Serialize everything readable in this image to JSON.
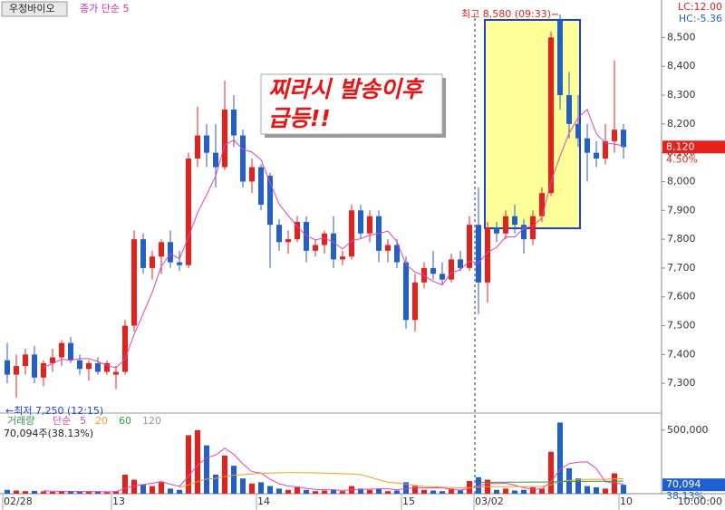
{
  "header": {
    "tab": "우정바이오",
    "indicator": "종가 단순 5",
    "lc": "LC:12.00",
    "hc": "HC:-5.36",
    "time": "10:00:00"
  },
  "chart_data": [
    {
      "type": "candlestick",
      "up_color": "#e8201c",
      "down_color": "#1f5fce",
      "ylim": [
        7200,
        8630
      ],
      "yticks": [
        {
          "value": 7300,
          "label": "7,300"
        },
        {
          "value": 7400,
          "label": "7,400"
        },
        {
          "value": 7500,
          "label": "7,500"
        },
        {
          "value": 7600,
          "label": "7,600"
        },
        {
          "value": 7700,
          "label": "7,700"
        },
        {
          "value": 7800,
          "label": "7,800"
        },
        {
          "value": 7900,
          "label": "7,900"
        },
        {
          "value": 8000,
          "label": "8,000"
        },
        {
          "value": 8100,
          "label": "8,100"
        },
        {
          "value": 8200,
          "label": "8,200"
        },
        {
          "value": 8300,
          "label": "8,300"
        },
        {
          "value": 8400,
          "label": "8,400"
        },
        {
          "value": 8500,
          "label": "8,500"
        }
      ],
      "candles": [
        [
          7380,
          7440,
          7300,
          7330
        ],
        [
          7330,
          7400,
          7250,
          7360
        ],
        [
          7360,
          7420,
          7330,
          7400
        ],
        [
          7400,
          7430,
          7300,
          7320
        ],
        [
          7320,
          7380,
          7290,
          7370
        ],
        [
          7370,
          7420,
          7340,
          7390
        ],
        [
          7390,
          7450,
          7360,
          7440
        ],
        [
          7440,
          7460,
          7370,
          7380
        ],
        [
          7380,
          7400,
          7330,
          7350
        ],
        [
          7350,
          7380,
          7310,
          7370
        ],
        [
          7370,
          7390,
          7330,
          7340
        ],
        [
          7340,
          7380,
          7330,
          7370
        ],
        [
          7330,
          7360,
          7280,
          7340
        ],
        [
          7340,
          7520,
          7330,
          7500
        ],
        [
          7500,
          7830,
          7480,
          7800
        ],
        [
          7800,
          7820,
          7680,
          7700
        ],
        [
          7700,
          7760,
          7660,
          7740
        ],
        [
          7740,
          7800,
          7680,
          7790
        ],
        [
          7790,
          7830,
          7700,
          7720
        ],
        [
          7720,
          7760,
          7690,
          7710
        ],
        [
          7710,
          8100,
          7700,
          8080
        ],
        [
          8080,
          8260,
          8050,
          8160
        ],
        [
          8160,
          8200,
          8050,
          8100
        ],
        [
          8100,
          8200,
          7980,
          8050
        ],
        [
          8050,
          8350,
          8040,
          8250
        ],
        [
          8250,
          8300,
          8120,
          8160
        ],
        [
          8160,
          8180,
          7980,
          8000
        ],
        [
          8000,
          8080,
          7960,
          8050
        ],
        [
          8050,
          8060,
          7900,
          7920
        ],
        [
          8020,
          8030,
          7700,
          7850
        ],
        [
          7850,
          7870,
          7760,
          7790
        ],
        [
          7790,
          7830,
          7750,
          7800
        ],
        [
          7800,
          7880,
          7790,
          7860
        ],
        [
          7860,
          7880,
          7720,
          7760
        ],
        [
          7760,
          7800,
          7740,
          7780
        ],
        [
          7780,
          7830,
          7750,
          7820
        ],
        [
          7820,
          7880,
          7700,
          7730
        ],
        [
          7730,
          7760,
          7710,
          7740
        ],
        [
          7740,
          7920,
          7730,
          7900
        ],
        [
          7900,
          7920,
          7800,
          7820
        ],
        [
          7820,
          7900,
          7790,
          7880
        ],
        [
          7880,
          7900,
          7720,
          7760
        ],
        [
          7760,
          7800,
          7720,
          7780
        ],
        [
          7780,
          7800,
          7700,
          7720
        ],
        [
          7720,
          7740,
          7490,
          7520
        ],
        [
          7520,
          7680,
          7480,
          7650
        ],
        [
          7650,
          7720,
          7630,
          7700
        ],
        [
          7700,
          7760,
          7660,
          7680
        ],
        [
          7680,
          7720,
          7640,
          7660
        ],
        [
          7660,
          7750,
          7650,
          7730
        ],
        [
          7730,
          7760,
          7690,
          7700
        ],
        [
          7700,
          7880,
          7690,
          7850
        ],
        [
          7850,
          7980,
          7540,
          7650
        ],
        [
          7650,
          7860,
          7580,
          7840
        ],
        [
          7840,
          7860,
          7790,
          7820
        ],
        [
          7820,
          7900,
          7800,
          7880
        ],
        [
          7880,
          7920,
          7820,
          7850
        ],
        [
          7850,
          7870,
          7750,
          7800
        ],
        [
          7800,
          7900,
          7780,
          7880
        ],
        [
          7880,
          7980,
          7860,
          7960
        ],
        [
          7960,
          8520,
          7950,
          8500
        ],
        [
          8560,
          8580,
          8250,
          8300
        ],
        [
          8300,
          8380,
          8150,
          8200
        ],
        [
          8200,
          8300,
          8120,
          8150
        ],
        [
          8150,
          8200,
          8000,
          8100
        ],
        [
          8100,
          8140,
          8050,
          8080
        ],
        [
          8080,
          8200,
          8060,
          8140
        ],
        [
          8140,
          8420,
          8100,
          8180
        ],
        [
          8180,
          8200,
          8080,
          8120
        ]
      ],
      "ma": {
        "name": "종가 단순 5",
        "color": "#e040c0",
        "values": [
          null,
          null,
          null,
          null,
          7356,
          7368,
          7384,
          7380,
          7386,
          7386,
          7376,
          7362,
          7354,
          7384,
          7470,
          7542,
          7616,
          7706,
          7750,
          7732,
          7808,
          7892,
          7954,
          8020,
          8128,
          8144,
          8112,
          8102,
          8076,
          7996,
          7922,
          7882,
          7844,
          7812,
          7798,
          7804,
          7790,
          7766,
          7794,
          7802,
          7814,
          7820,
          7828,
          7792,
          7712,
          7686,
          7674,
          7654,
          7642,
          7684,
          7694,
          7724,
          7718,
          7754,
          7772,
          7808,
          7808,
          7838,
          7846,
          7874,
          7998,
          8088,
          8168,
          8222,
          8250,
          8166,
          8134,
          8130,
          8124
        ]
      },
      "high_label": "최고 8,580 (09:33)",
      "high_index": 61,
      "high": 8580,
      "low_label": "←최저 7,250 (12:15)",
      "low": 7250,
      "last_price": {
        "value": 8120,
        "label": "8,120"
      },
      "change_label": "4.50%",
      "annotation": [
        "찌라시 발송이후",
        "급등!!"
      ]
    },
    {
      "type": "bar",
      "ylim": [
        0,
        620000
      ],
      "yticks": [
        {
          "value": 500000,
          "label": "500,000"
        }
      ],
      "title": "거래량",
      "ma_label": "단순",
      "info": "70,094주(38.13%)",
      "last_volume": {
        "value": 70094,
        "label": "70,094"
      },
      "ratio_label": "38.13%",
      "categories": [
        "02/28",
        null,
        null,
        null,
        null,
        null,
        null,
        null,
        null,
        null,
        null,
        null,
        "13",
        null,
        null,
        null,
        null,
        null,
        null,
        null,
        null,
        null,
        null,
        null,
        null,
        null,
        null,
        null,
        "14",
        null,
        null,
        null,
        null,
        null,
        null,
        null,
        null,
        null,
        null,
        null,
        null,
        null,
        null,
        null,
        "15",
        null,
        null,
        null,
        null,
        null,
        null,
        null,
        "03/02",
        null,
        null,
        null,
        null,
        null,
        null,
        null,
        null,
        null,
        null,
        null,
        null,
        null,
        null,
        null,
        "10"
      ],
      "values": [
        30000,
        25000,
        20000,
        22000,
        18000,
        15000,
        20000,
        18000,
        15000,
        16000,
        14000,
        12000,
        20000,
        150000,
        110000,
        70000,
        60000,
        90000,
        40000,
        30000,
        460000,
        500000,
        380000,
        150000,
        300000,
        220000,
        120000,
        80000,
        90000,
        60000,
        40000,
        30000,
        50000,
        30000,
        20000,
        25000,
        30000,
        20000,
        60000,
        40000,
        30000,
        40000,
        20000,
        25000,
        90000,
        60000,
        30000,
        25000,
        20000,
        40000,
        25000,
        100000,
        130000,
        110000,
        30000,
        40000,
        25000,
        30000,
        50000,
        40000,
        330000,
        560000,
        200000,
        120000,
        60000,
        50000,
        40000,
        160000,
        70094
      ],
      "series": [
        {
          "name": "5",
          "color": "#e040c0",
          "values": [
            null,
            null,
            null,
            null,
            23000,
            20000,
            19000,
            18600,
            17200,
            16800,
            16600,
            15000,
            15400,
            42400,
            61200,
            72400,
            82000,
            96000,
            74000,
            58000,
            136000,
            224000,
            282000,
            304000,
            358000,
            310000,
            234000,
            174000,
            162000,
            114000,
            78000,
            60000,
            54000,
            42000,
            34000,
            31000,
            31000,
            25000,
            31000,
            35000,
            36000,
            38000,
            38000,
            31000,
            41000,
            47000,
            45000,
            46000,
            45000,
            35000,
            28000,
            42000,
            63000,
            81000,
            79000,
            82000,
            67000,
            47000,
            35000,
            37000,
            95000,
            191000,
            236000,
            248000,
            250000,
            198000,
            94000,
            86000,
            76000
          ]
        },
        {
          "name": "20",
          "color": "#f0a020",
          "values": [
            null,
            null,
            null,
            null,
            null,
            null,
            null,
            null,
            null,
            null,
            null,
            null,
            null,
            null,
            null,
            null,
            null,
            null,
            null,
            50000,
            70000,
            95000,
            115000,
            120000,
            135000,
            145000,
            150000,
            155000,
            160000,
            162000,
            165000,
            166000,
            166000,
            165000,
            164000,
            162000,
            160000,
            158000,
            155000,
            150000,
            130000,
            110000,
            90000,
            85000,
            75000,
            65000,
            58000,
            55000,
            52000,
            48000,
            45000,
            47000,
            52000,
            55000,
            55000,
            56000,
            56000,
            56000,
            57000,
            58000,
            70000,
            95000,
            105000,
            110000,
            112000,
            113000,
            113000,
            118000,
            117000
          ]
        },
        {
          "name": "60",
          "color": "#2a9a40",
          "values": [
            null,
            null,
            null,
            null,
            null,
            null,
            null,
            null,
            null,
            null,
            null,
            null,
            null,
            null,
            null,
            null,
            null,
            null,
            null,
            null,
            null,
            null,
            null,
            null,
            null,
            null,
            null,
            null,
            null,
            null,
            null,
            null,
            null,
            null,
            null,
            null,
            null,
            null,
            null,
            null,
            null,
            null,
            null,
            null,
            null,
            null,
            null,
            null,
            null,
            null,
            null,
            null,
            90000,
            90000,
            90000,
            91000,
            91000,
            91000,
            92000,
            92000,
            93000,
            95000,
            96000,
            97000,
            97000,
            98000,
            98000,
            99000,
            99000
          ]
        },
        {
          "name": "120",
          "color": "#999999",
          "values": [
            null,
            null,
            null,
            null,
            null,
            null,
            null,
            null,
            null,
            null,
            null,
            null,
            null,
            null,
            null,
            null,
            null,
            null,
            null,
            null,
            null,
            null,
            null,
            null,
            null,
            null,
            null,
            null,
            null,
            null,
            null,
            null,
            null,
            null,
            null,
            null,
            null,
            null,
            null,
            null,
            null,
            null,
            null,
            null,
            null,
            null,
            null,
            null,
            null,
            null,
            null,
            null,
            null,
            null,
            null,
            null,
            null,
            null,
            null,
            null,
            null,
            null,
            null,
            null,
            null,
            null,
            null,
            null,
            null
          ]
        }
      ]
    }
  ]
}
